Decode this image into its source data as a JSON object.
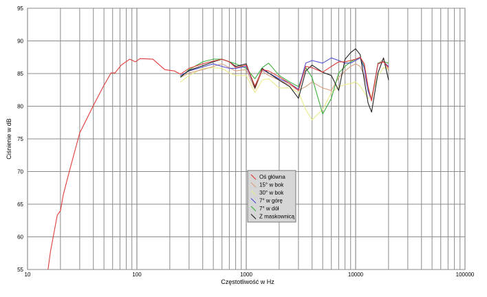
{
  "chart_data": {
    "type": "line",
    "title": "",
    "xlabel": "Częstotliwość w Hz",
    "ylabel": "Ciśnienie w dB",
    "x_scale": "log",
    "xlim": [
      10,
      100000
    ],
    "ylim": [
      55,
      95
    ],
    "grid": true,
    "legend_position": "center",
    "x_ticks": [
      "10",
      "100",
      "1000",
      "10000",
      "100000"
    ],
    "y_ticks": [
      "55",
      "60",
      "65",
      "70",
      "75",
      "80",
      "85",
      "90",
      "95"
    ],
    "series": [
      {
        "name": "Oś główna",
        "color": "#e03a3a",
        "x": [
          15.4,
          16.2,
          18.7,
          20,
          21.2,
          24,
          30,
          40,
          50,
          58,
          63,
          72,
          86,
          97,
          107,
          140,
          180,
          220,
          250,
          300,
          400,
          500,
          600,
          700,
          800,
          1000,
          1200,
          1400,
          1600,
          2000,
          2500,
          3000,
          3500,
          4000,
          5000,
          6000,
          7000,
          8000,
          9000,
          10000,
          11000,
          12000,
          13000,
          14000,
          16000,
          18000,
          20000
        ],
        "y": [
          55,
          57.7,
          63.3,
          64,
          66.4,
          69.9,
          75.9,
          80.1,
          83.2,
          85.1,
          85.1,
          86.3,
          87.2,
          86.8,
          87.3,
          87.2,
          85.6,
          85.4,
          84.9,
          85.8,
          86.5,
          86.9,
          87.2,
          86.8,
          85.9,
          86.3,
          83.1,
          85.6,
          85.4,
          84.5,
          83.5,
          82.4,
          86.1,
          85.9,
          85.2,
          86.1,
          86.8,
          86.8,
          87.0,
          87.2,
          87.5,
          86.5,
          83.0,
          80.8,
          86.5,
          86.8,
          85.9
        ]
      },
      {
        "name": "15° w bok",
        "color": "#d9a080",
        "x": [
          250,
          300,
          400,
          500,
          600,
          700,
          800,
          1000,
          1200,
          1400,
          1600,
          2000,
          2500,
          3000,
          3500,
          4000,
          5000,
          6000,
          7000,
          8000,
          9000,
          10000,
          11000,
          12000,
          13000,
          14000,
          16000,
          18000,
          20000
        ],
        "y": [
          84.4,
          85.1,
          85.6,
          86.1,
          86.5,
          85.9,
          85.4,
          85.6,
          82.6,
          85.4,
          84.7,
          84.0,
          83.3,
          82.4,
          83.0,
          83.7,
          82.8,
          82.4,
          84.4,
          85.4,
          86.1,
          86.5,
          86.1,
          84.7,
          82.6,
          81.2,
          86.5,
          87.2,
          85.4
        ]
      },
      {
        "name": "30° w bok",
        "color": "#eaea8a",
        "x": [
          250,
          300,
          400,
          500,
          600,
          700,
          800,
          1000,
          1200,
          1400,
          1600,
          2000,
          2500,
          3000,
          3500,
          4000,
          5000,
          6000,
          7000,
          8000,
          9000,
          10000,
          11000,
          12000,
          13000,
          14000,
          16000,
          18000,
          20000
        ],
        "y": [
          83.7,
          84.7,
          85.8,
          85.9,
          85.8,
          85.1,
          84.7,
          84.7,
          82.1,
          84.0,
          84.2,
          82.8,
          82.8,
          82.1,
          79.5,
          77.9,
          79.5,
          82.1,
          83.0,
          83.3,
          83.5,
          83.7,
          83.1,
          82.1,
          81.2,
          81.6,
          84.7,
          85.9,
          85.8
        ]
      },
      {
        "name": "7° w górę",
        "color": "#5050d0",
        "x": [
          250,
          300,
          400,
          500,
          600,
          700,
          800,
          1000,
          1200,
          1400,
          1600,
          2000,
          2500,
          3000,
          3500,
          4000,
          5000,
          6000,
          7000,
          8000,
          9000,
          10000,
          11000,
          12000,
          13000,
          14000,
          16000,
          18000,
          20000
        ],
        "y": [
          84.7,
          85.4,
          86.0,
          86.5,
          86.1,
          85.8,
          85.8,
          86.1,
          83.0,
          85.6,
          85.1,
          84.2,
          83.5,
          82.6,
          86.6,
          87.0,
          86.6,
          87.4,
          87.0,
          86.6,
          86.6,
          87.0,
          87.4,
          85.8,
          82.3,
          80.9,
          86.5,
          86.8,
          86.1
        ]
      },
      {
        "name": "7° w dół",
        "color": "#3cae3c",
        "x": [
          250,
          300,
          400,
          500,
          600,
          700,
          800,
          1000,
          1200,
          1400,
          1600,
          2000,
          2500,
          3000,
          3500,
          4000,
          5000,
          6000,
          7000,
          8000,
          9000,
          10000,
          11000,
          12000,
          13000,
          14000,
          16000,
          18000,
          20000
        ],
        "y": [
          84.4,
          85.6,
          86.8,
          87.2,
          87.2,
          86.8,
          86.5,
          85.8,
          84.2,
          85.9,
          86.6,
          84.7,
          83.7,
          83.0,
          85.9,
          84.4,
          78.8,
          81.2,
          85.1,
          86.1,
          86.8,
          87.2,
          87.4,
          86.1,
          82.6,
          80.9,
          86.6,
          86.8,
          86.6
        ]
      },
      {
        "name": "Z maskownicą",
        "color": "#202020",
        "x": [
          250,
          300,
          400,
          500,
          600,
          700,
          800,
          1000,
          1200,
          1400,
          1600,
          2000,
          2500,
          3000,
          3500,
          4000,
          5000,
          6000,
          7000,
          8000,
          9000,
          10000,
          11000,
          12000,
          13000,
          14000,
          16000,
          18000,
          20000
        ],
        "y": [
          84.5,
          85.5,
          86.2,
          86.8,
          87.2,
          86.8,
          86.1,
          86.5,
          82.8,
          85.8,
          85.1,
          84.0,
          83.0,
          81.2,
          85.4,
          86.3,
          85.2,
          84.7,
          82.4,
          87.2,
          88.2,
          88.8,
          87.9,
          84.0,
          80.5,
          79.1,
          85.1,
          87.4,
          84.0
        ]
      }
    ]
  }
}
